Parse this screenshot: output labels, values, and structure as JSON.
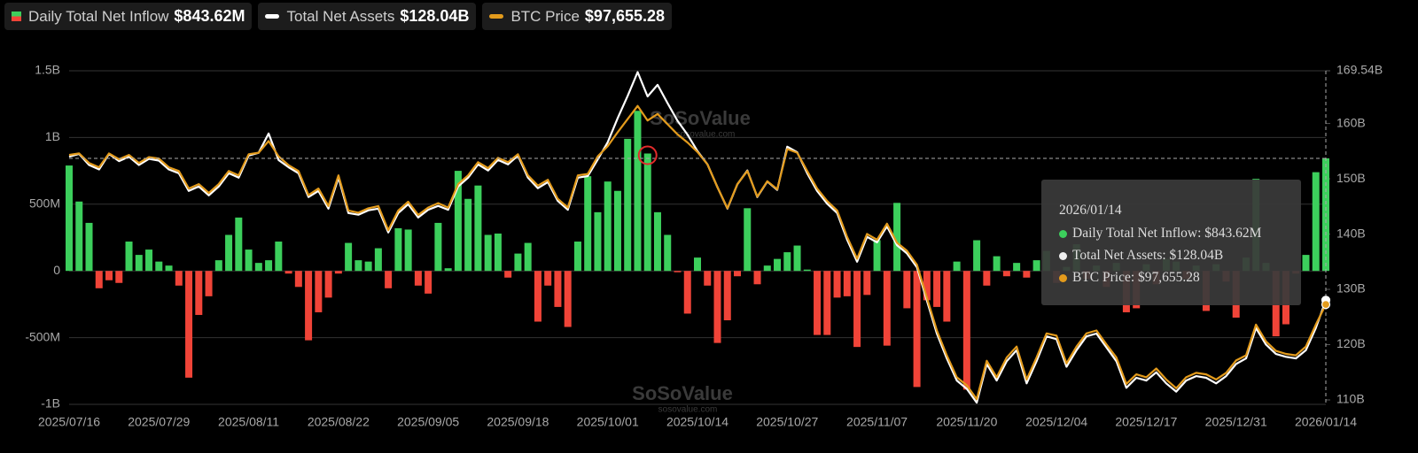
{
  "chart_data": {
    "type": "bar-line",
    "watermark": "SoSoValue",
    "watermark_url": "sosovalue.com",
    "categories": [
      "2025/07/16",
      null,
      null,
      null,
      null,
      null,
      null,
      null,
      null,
      "2025/07/29",
      null,
      null,
      null,
      null,
      null,
      null,
      null,
      null,
      "2025/08/11",
      null,
      null,
      null,
      null,
      null,
      null,
      null,
      null,
      "2025/08/22",
      null,
      null,
      null,
      null,
      null,
      null,
      null,
      null,
      "2025/09/05",
      null,
      null,
      null,
      null,
      null,
      null,
      null,
      null,
      "2025/09/18",
      null,
      null,
      null,
      null,
      null,
      null,
      null,
      null,
      "2025/10/01",
      null,
      null,
      null,
      null,
      null,
      null,
      null,
      null,
      "2025/10/14",
      null,
      null,
      null,
      null,
      null,
      null,
      null,
      null,
      "2025/10/27",
      null,
      null,
      null,
      null,
      null,
      null,
      null,
      null,
      "2025/11/07",
      null,
      null,
      null,
      null,
      null,
      null,
      null,
      null,
      "2025/11/20",
      null,
      null,
      null,
      null,
      null,
      null,
      null,
      null,
      "2025/12/04",
      null,
      null,
      null,
      null,
      null,
      null,
      null,
      null,
      "2025/12/17",
      null,
      null,
      null,
      null,
      null,
      null,
      null,
      null,
      "2025/12/31",
      null,
      null,
      null,
      null,
      null,
      null,
      null,
      null,
      "2026/01/14"
    ],
    "series": [
      {
        "name": "Daily Total Net Inflow",
        "current_label": "$843.62M",
        "axis": "y",
        "pos_color": "#3ccf5c",
        "neg_color": "#f04438",
        "values": [
          790000000,
          520000000,
          360000000,
          -130000000,
          -70000000,
          -90000000,
          220000000,
          120000000,
          160000000,
          70000000,
          40000000,
          -110000000,
          -800000000,
          -330000000,
          -190000000,
          80000000,
          270000000,
          400000000,
          160000000,
          60000000,
          80000000,
          220000000,
          -20000000,
          -120000000,
          -520000000,
          -310000000,
          -200000000,
          -20000000,
          210000000,
          80000000,
          70000000,
          170000000,
          -130000000,
          320000000,
          310000000,
          -110000000,
          -170000000,
          360000000,
          20000000,
          750000000,
          540000000,
          640000000,
          270000000,
          280000000,
          -50000000,
          130000000,
          210000000,
          -380000000,
          -110000000,
          -270000000,
          -420000000,
          220000000,
          710000000,
          440000000,
          670000000,
          600000000,
          990000000,
          1200000000,
          880000000,
          440000000,
          270000000,
          -10000000,
          -320000000,
          100000000,
          -110000000,
          -540000000,
          -370000000,
          -40000000,
          470000000,
          -100000000,
          40000000,
          90000000,
          140000000,
          190000000,
          10000000,
          -480000000,
          -480000000,
          -200000000,
          -190000000,
          -570000000,
          -180000000,
          230000000,
          -560000000,
          510000000,
          -280000000,
          -870000000,
          -220000000,
          -270000000,
          -380000000,
          70000000,
          -890000000,
          230000000,
          -110000000,
          110000000,
          -40000000,
          60000000,
          -50000000,
          80000000,
          150000000,
          -90000000,
          30000000,
          200000000,
          -60000000,
          40000000,
          -120000000,
          60000000,
          -310000000,
          -280000000,
          50000000,
          -100000000,
          90000000,
          70000000,
          -60000000,
          40000000,
          -300000000,
          50000000,
          -80000000,
          -350000000,
          100000000,
          690000000,
          60000000,
          -490000000,
          -400000000,
          -20000000,
          120000000,
          740000000,
          843620000
        ]
      },
      {
        "name": "Total Net Assets",
        "current_label": "$128.04B",
        "axis": "y2",
        "color": "#ffffff",
        "values": [
          154.0,
          154.5,
          152.5,
          151.7,
          154.5,
          153.2,
          154.0,
          152.5,
          153.6,
          153.3,
          151.7,
          151.0,
          147.8,
          148.6,
          147.0,
          148.6,
          151.0,
          150.2,
          154.2,
          154.7,
          158.2,
          153.4,
          152.1,
          151.0,
          146.7,
          147.8,
          144.6,
          150.2,
          143.8,
          143.5,
          144.3,
          144.6,
          140.3,
          143.8,
          145.4,
          143.0,
          144.4,
          145.1,
          144.4,
          148.6,
          150.2,
          152.6,
          151.5,
          153.4,
          152.6,
          154.2,
          150.2,
          148.3,
          149.4,
          146.0,
          144.4,
          150.2,
          150.5,
          153.5,
          156.6,
          161.0,
          165.0,
          169.3,
          164.9,
          167.0,
          163.7,
          160.5,
          158.0,
          155.0,
          152.6,
          148.5,
          144.6,
          149.0,
          151.5,
          146.7,
          149.5,
          148.0,
          155.8,
          154.8,
          151.0,
          147.8,
          145.5,
          143.8,
          139.0,
          135.0,
          139.5,
          138.5,
          141.4,
          138.0,
          136.5,
          134.0,
          128.0,
          122.0,
          117.5,
          113.5,
          112.0,
          109.5,
          116.5,
          113.5,
          117.0,
          119.0,
          113.0,
          117.0,
          121.5,
          121.0,
          116.0,
          119.0,
          121.5,
          122.0,
          119.5,
          117.0,
          112.2,
          114.0,
          113.5,
          115.0,
          113.0,
          111.5,
          113.5,
          114.3,
          114.0,
          113.0,
          114.3,
          116.5,
          117.5,
          123.0,
          120.0,
          118.3,
          117.8,
          117.5,
          119.0,
          123.0,
          128.04
        ]
      },
      {
        "name": "BTC Price",
        "current_label": "$97,655.28",
        "axis": "y3",
        "color": "#e39b1c",
        "values": [
          118100,
          118300,
          117000,
          116400,
          118300,
          117500,
          118100,
          117000,
          117800,
          117600,
          116400,
          115900,
          113500,
          114100,
          112900,
          114100,
          115900,
          115300,
          118200,
          118400,
          120000,
          117900,
          116700,
          115900,
          112600,
          113500,
          111100,
          115300,
          110500,
          110200,
          110800,
          111100,
          107800,
          110500,
          111700,
          109900,
          110900,
          111500,
          110900,
          114100,
          115300,
          117100,
          116300,
          117700,
          117100,
          118200,
          115300,
          113900,
          114700,
          112100,
          110900,
          115300,
          115500,
          117900,
          119300,
          121200,
          123000,
          124800,
          122800,
          123700,
          122300,
          120900,
          119800,
          118500,
          116800,
          113700,
          110800,
          114100,
          115900,
          112400,
          114500,
          113400,
          118900,
          118400,
          115900,
          113500,
          111800,
          110500,
          106900,
          103900,
          107300,
          106500,
          108700,
          106100,
          105000,
          103100,
          98600,
          94100,
          90700,
          87700,
          86600,
          84700,
          89950,
          87700,
          90400,
          91900,
          87400,
          90400,
          93700,
          93400,
          89600,
          91900,
          93700,
          94100,
          92200,
          90400,
          86800,
          88100,
          87700,
          88900,
          87400,
          86200,
          87700,
          88300,
          88100,
          87400,
          88300,
          90000,
          90700,
          94900,
          92600,
          91300,
          90900,
          90700,
          91900,
          94900,
          97655.28
        ]
      }
    ],
    "ylim": [
      -1000000000,
      1500000000
    ],
    "yticks": [
      {
        "value": -1000000000,
        "label": "-1B"
      },
      {
        "value": -500000000,
        "label": "-500M"
      },
      0,
      {
        "value": 500000000,
        "label": "500M"
      },
      {
        "value": 1000000000,
        "label": "1B"
      },
      {
        "value": 1500000000,
        "label": "1.5B"
      }
    ],
    "y2lim": [
      109.2,
      169.54
    ],
    "y2ticks": [
      {
        "value": 110,
        "label": "110B"
      },
      {
        "value": 120,
        "label": "120B"
      },
      {
        "value": 130,
        "label": "130B"
      },
      {
        "value": 140,
        "label": "140B"
      },
      {
        "value": 150,
        "label": "150B"
      },
      {
        "value": 160,
        "label": "160B"
      },
      {
        "value": 169.54,
        "label": "169.54B"
      }
    ],
    "y3lim": [
      84000,
      129600
    ],
    "grid": true,
    "tooltip": {
      "title": "2026/01/14",
      "items": [
        "Daily Total Net Inflow: $843.62M",
        "Total Net Assets: $128.04B",
        "BTC Price: $97,655.28"
      ]
    }
  }
}
